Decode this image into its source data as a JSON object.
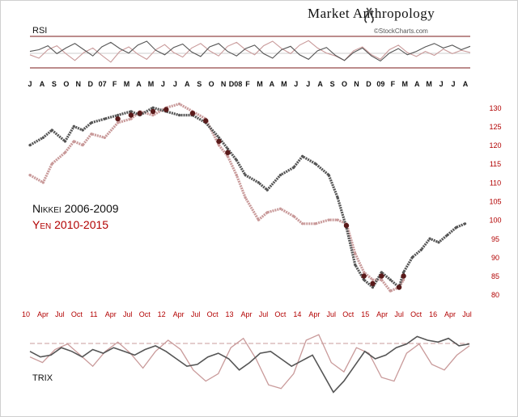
{
  "header": {
    "title": "Market Anthropology",
    "source_credit": "©StockCharts.com"
  },
  "panels": {
    "rsi_label": "RSI",
    "trix_label": "TRIX"
  },
  "colors": {
    "nikkei": "#555555",
    "yen": "#c99a9a",
    "overlap": "#5a1a1a",
    "axis_red": "#b20000",
    "axis_black": "#111111"
  },
  "chart_data": [
    {
      "type": "line",
      "panel": "RSI",
      "title": "RSI",
      "ylim": [
        20,
        80
      ],
      "reference_lines": [
        70,
        50,
        30
      ],
      "series": [
        {
          "name": "Nikkei 2006-2009",
          "values": [
            52,
            55,
            62,
            48,
            58,
            66,
            55,
            44,
            60,
            68,
            57,
            49,
            63,
            70,
            54,
            46,
            59,
            65,
            51,
            43,
            60,
            66,
            52,
            44,
            57,
            63,
            48,
            40,
            55,
            61,
            46,
            38,
            53,
            59,
            45,
            36,
            50,
            58,
            44,
            35,
            49,
            57,
            46,
            52,
            60,
            66,
            58,
            63,
            55,
            61
          ]
        },
        {
          "name": "Yen 2010-2015",
          "values": [
            46,
            40,
            55,
            62,
            48,
            36,
            50,
            58,
            45,
            33,
            52,
            60,
            47,
            38,
            55,
            64,
            50,
            42,
            58,
            66,
            53,
            44,
            61,
            68,
            55,
            46,
            62,
            70,
            57,
            48,
            63,
            71,
            58,
            49,
            44,
            36,
            53,
            60,
            46,
            38,
            55,
            63,
            50,
            43,
            52,
            45,
            56,
            48,
            54,
            50
          ]
        }
      ],
      "month_labels": [
        "J",
        "A",
        "S",
        "O",
        "N",
        "D",
        "07",
        "F",
        "M",
        "A",
        "M",
        "J",
        "J",
        "A",
        "S",
        "O",
        "N",
        "D08",
        "F",
        "M",
        "A",
        "M",
        "J",
        "J",
        "A",
        "S",
        "O",
        "N",
        "D",
        "09",
        "F",
        "M",
        "A",
        "M",
        "J",
        "J",
        "A"
      ]
    },
    {
      "type": "line",
      "panel": "price",
      "legend": [
        "Nikkei 2006-2009",
        "Yen 2010-2015"
      ],
      "yticks_right": [
        80,
        85,
        90,
        95,
        100,
        105,
        110,
        115,
        120,
        125,
        130
      ],
      "ylim": [
        78,
        132
      ],
      "x_range": [
        0,
        100
      ],
      "series": [
        {
          "name": "Nikkei 2006-2009",
          "x": [
            0,
            3,
            5,
            8,
            10,
            12,
            14,
            17,
            20,
            23,
            25,
            28,
            31,
            34,
            37,
            40,
            43,
            45,
            47,
            49,
            52,
            54,
            57,
            60,
            62,
            65,
            68,
            70,
            72,
            74,
            76,
            78,
            80,
            82,
            84,
            85,
            87,
            89,
            91,
            93,
            95,
            97,
            99
          ],
          "y": [
            120,
            122,
            124,
            121,
            125,
            124,
            126,
            127,
            128,
            129,
            128,
            130,
            129,
            128,
            128,
            126,
            122,
            119,
            116,
            112,
            110,
            108,
            112,
            114,
            117,
            115,
            112,
            106,
            98,
            88,
            84,
            82,
            86,
            84,
            82,
            86,
            90,
            92,
            95,
            94,
            96,
            98,
            99
          ]
        },
        {
          "name": "Yen 2010-2015",
          "x": [
            0,
            3,
            5,
            8,
            10,
            12,
            14,
            17,
            20,
            23,
            25,
            28,
            31,
            34,
            37,
            40,
            43,
            45,
            47,
            49,
            52,
            54,
            57,
            60,
            62,
            65,
            68,
            70,
            72,
            74,
            76,
            78,
            80,
            82,
            84,
            85
          ],
          "y": [
            112,
            110,
            115,
            118,
            121,
            120,
            123,
            122,
            126,
            127,
            129,
            128,
            130,
            131,
            129,
            127,
            120,
            117,
            112,
            106,
            100,
            102,
            103,
            101,
            99,
            99,
            100,
            100,
            99,
            91,
            86,
            84,
            84,
            81,
            82,
            84
          ]
        }
      ]
    },
    {
      "type": "line",
      "panel": "TRIX",
      "title": "TRIX",
      "x_axis_labels": [
        "10",
        "Apr",
        "Jul",
        "Oct",
        "11",
        "Apr",
        "Jul",
        "Oct",
        "12",
        "Apr",
        "Jul",
        "Oct",
        "13",
        "Apr",
        "Jul",
        "Oct",
        "14",
        "Apr",
        "Jul",
        "Oct",
        "15",
        "Apr",
        "Jul",
        "Oct",
        "16",
        "Apr",
        "Jul"
      ],
      "ylim": [
        -1,
        1
      ],
      "reference_lines": [
        0
      ],
      "series": [
        {
          "name": "Nikkei 2006-2009",
          "values": [
            0.2,
            0.05,
            0.1,
            0.3,
            0.2,
            0.05,
            0.25,
            0.15,
            0.3,
            0.2,
            0.1,
            0.25,
            0.35,
            0.2,
            0.0,
            -0.2,
            -0.15,
            0.05,
            0.15,
            0.0,
            -0.3,
            -0.1,
            0.15,
            0.2,
            0.0,
            -0.2,
            -0.05,
            0.1,
            -0.4,
            -0.9,
            -0.6,
            -0.2,
            0.2,
            0.0,
            0.1,
            0.3,
            0.4,
            0.6,
            0.5,
            0.45,
            0.55,
            0.35,
            0.4
          ]
        },
        {
          "name": "Yen 2010-2015",
          "values": [
            0.05,
            -0.1,
            0.25,
            0.4,
            0.1,
            -0.2,
            0.2,
            0.45,
            0.15,
            -0.25,
            0.2,
            0.5,
            0.25,
            -0.3,
            -0.6,
            -0.4,
            0.3,
            0.55,
            0.0,
            -0.7,
            -0.8,
            -0.4,
            0.5,
            0.65,
            -0.1,
            -0.35,
            0.3,
            0.15,
            -0.5,
            -0.6,
            0.15,
            0.4,
            -0.15,
            -0.3,
            0.1,
            0.35
          ]
        }
      ]
    }
  ]
}
